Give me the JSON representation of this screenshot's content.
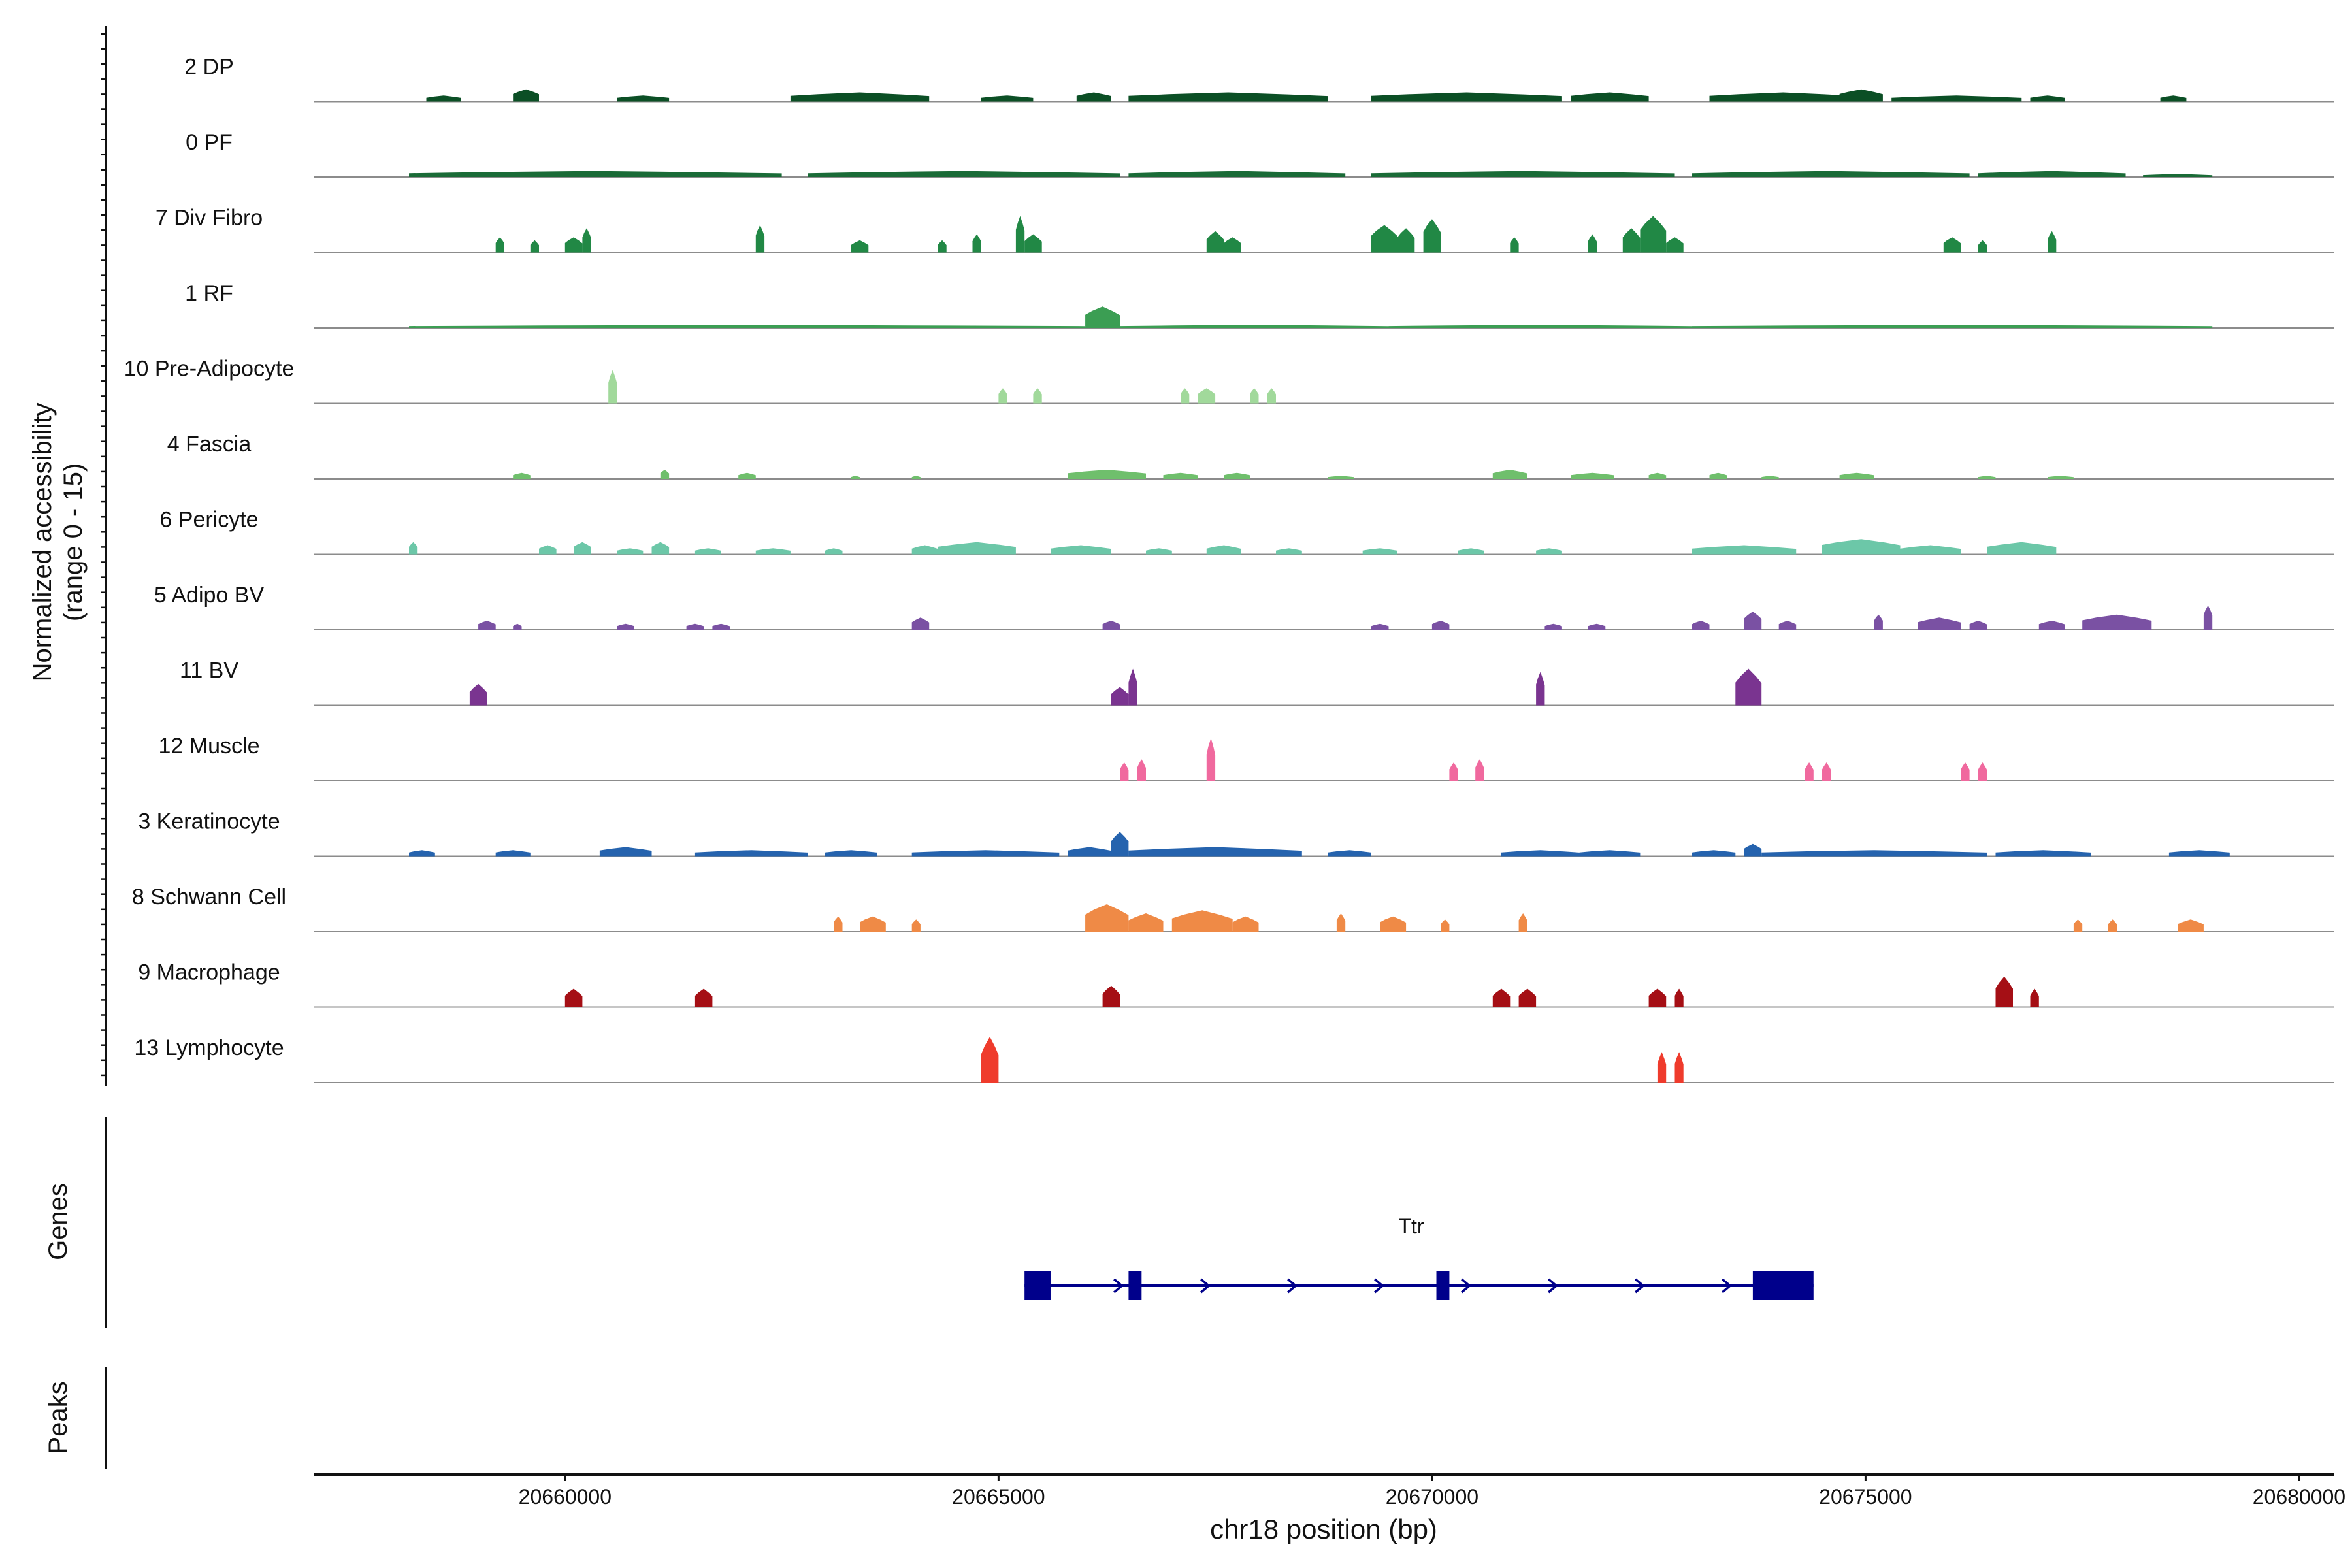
{
  "chart_data": {
    "type": "area",
    "ylabel": [
      "Normalized accessibility",
      "(range 0 - 15)"
    ],
    "ylim": [
      0,
      15
    ],
    "xlabel": "chr18 position (bp)",
    "xlim": [
      20657100,
      20680400
    ],
    "x_ticks": [
      20660000,
      20665000,
      20670000,
      20675000,
      20680000
    ],
    "x_tick_labels": [
      "20660000",
      "20665000",
      "20670000",
      "20675000",
      "20680000"
    ],
    "panels": {
      "genes": "Genes",
      "peaks": "Peaks"
    },
    "tracks": [
      {
        "name": "2 DP",
        "color": "#0b4f25",
        "peaks": [
          [
            20658400,
            20658800,
            2
          ],
          [
            20659400,
            20659700,
            4
          ],
          [
            20660600,
            20661200,
            2
          ],
          [
            20662600,
            20664200,
            3
          ],
          [
            20664800,
            20665400,
            2
          ],
          [
            20665900,
            20666300,
            3
          ],
          [
            20666500,
            20668800,
            3
          ],
          [
            20669300,
            20671500,
            3
          ],
          [
            20671600,
            20672500,
            3
          ],
          [
            20673200,
            20674900,
            3
          ],
          [
            20674700,
            20675200,
            4
          ],
          [
            20675300,
            20676800,
            2
          ],
          [
            20676900,
            20677300,
            2
          ],
          [
            20678400,
            20678700,
            2
          ]
        ]
      },
      {
        "name": "0 PF",
        "color": "#1a6b37",
        "peaks": [
          [
            20658200,
            20662500,
            2
          ],
          [
            20662800,
            20666400,
            2
          ],
          [
            20666500,
            20669000,
            2
          ],
          [
            20669300,
            20672800,
            2
          ],
          [
            20673000,
            20676200,
            2
          ],
          [
            20676300,
            20678000,
            2
          ],
          [
            20678200,
            20679000,
            1
          ]
        ]
      },
      {
        "name": "7 Div Fibro",
        "color": "#218845",
        "peaks": [
          [
            20659200,
            20659300,
            5
          ],
          [
            20659600,
            20659700,
            4
          ],
          [
            20660000,
            20660200,
            5
          ],
          [
            20660200,
            20660300,
            8
          ],
          [
            20662200,
            20662300,
            9
          ],
          [
            20663300,
            20663500,
            4
          ],
          [
            20664300,
            20664400,
            4
          ],
          [
            20664700,
            20664800,
            6
          ],
          [
            20665200,
            20665300,
            12
          ],
          [
            20665300,
            20665500,
            6
          ],
          [
            20667400,
            20667600,
            7
          ],
          [
            20667600,
            20667800,
            5
          ],
          [
            20669300,
            20669600,
            9
          ],
          [
            20669600,
            20669800,
            8
          ],
          [
            20669900,
            20670100,
            11
          ],
          [
            20670900,
            20671000,
            5
          ],
          [
            20671800,
            20671900,
            6
          ],
          [
            20672200,
            20672400,
            8
          ],
          [
            20672400,
            20672700,
            12
          ],
          [
            20672700,
            20672900,
            5
          ],
          [
            20675900,
            20676100,
            5
          ],
          [
            20676300,
            20676400,
            4
          ],
          [
            20677100,
            20677200,
            7
          ]
        ]
      },
      {
        "name": "1 RF",
        "color": "#3b9e53",
        "peaks": [
          [
            20658200,
            20666000,
            1
          ],
          [
            20666000,
            20666400,
            7
          ],
          [
            20666400,
            20669500,
            1
          ],
          [
            20669500,
            20673000,
            1
          ],
          [
            20673000,
            20679000,
            1
          ]
        ]
      },
      {
        "name": "10 Pre-Adipocyte",
        "color": "#a1d99b",
        "peaks": [
          [
            20660500,
            20660600,
            11
          ],
          [
            20665000,
            20665100,
            5
          ],
          [
            20665400,
            20665500,
            5
          ],
          [
            20667100,
            20667200,
            5
          ],
          [
            20667300,
            20667500,
            5
          ],
          [
            20667900,
            20668000,
            5
          ],
          [
            20668100,
            20668200,
            5
          ]
        ]
      },
      {
        "name": "4 Fascia",
        "color": "#6fbf6c",
        "peaks": [
          [
            20659400,
            20659600,
            2
          ],
          [
            20661100,
            20661200,
            3
          ],
          [
            20662000,
            20662200,
            2
          ],
          [
            20663300,
            20663400,
            1
          ],
          [
            20664000,
            20664100,
            1
          ],
          [
            20665800,
            20666700,
            3
          ],
          [
            20666900,
            20667300,
            2
          ],
          [
            20667600,
            20667900,
            2
          ],
          [
            20668800,
            20669100,
            1
          ],
          [
            20670700,
            20671100,
            3
          ],
          [
            20671600,
            20672100,
            2
          ],
          [
            20672500,
            20672700,
            2
          ],
          [
            20673200,
            20673400,
            2
          ],
          [
            20673800,
            20674000,
            1
          ],
          [
            20674700,
            20675100,
            2
          ],
          [
            20676300,
            20676500,
            1
          ],
          [
            20677100,
            20677400,
            1
          ]
        ]
      },
      {
        "name": "6 Pericyte",
        "color": "#6cc7a8",
        "peaks": [
          [
            20658200,
            20658300,
            4
          ],
          [
            20659700,
            20659900,
            3
          ],
          [
            20660100,
            20660300,
            4
          ],
          [
            20660600,
            20660900,
            2
          ],
          [
            20661000,
            20661200,
            4
          ],
          [
            20661500,
            20661800,
            2
          ],
          [
            20662200,
            20662600,
            2
          ],
          [
            20663000,
            20663200,
            2
          ],
          [
            20664000,
            20664300,
            3
          ],
          [
            20664300,
            20665200,
            4
          ],
          [
            20665600,
            20666300,
            3
          ],
          [
            20666700,
            20667000,
            2
          ],
          [
            20667400,
            20667800,
            3
          ],
          [
            20668200,
            20668500,
            2
          ],
          [
            20669200,
            20669600,
            2
          ],
          [
            20670300,
            20670600,
            2
          ],
          [
            20671200,
            20671500,
            2
          ],
          [
            20673000,
            20674200,
            3
          ],
          [
            20674500,
            20675400,
            5
          ],
          [
            20675400,
            20676100,
            3
          ],
          [
            20676400,
            20677200,
            4
          ]
        ]
      },
      {
        "name": "5 Adipo BV",
        "color": "#7a51a3",
        "peaks": [
          [
            20659000,
            20659200,
            3
          ],
          [
            20659400,
            20659500,
            2
          ],
          [
            20660600,
            20660800,
            2
          ],
          [
            20661400,
            20661600,
            2
          ],
          [
            20661700,
            20661900,
            2
          ],
          [
            20664000,
            20664200,
            4
          ],
          [
            20666200,
            20666400,
            3
          ],
          [
            20669300,
            20669500,
            2
          ],
          [
            20670000,
            20670200,
            3
          ],
          [
            20671300,
            20671500,
            2
          ],
          [
            20671800,
            20672000,
            2
          ],
          [
            20673000,
            20673200,
            3
          ],
          [
            20673600,
            20673800,
            6
          ],
          [
            20674000,
            20674200,
            3
          ],
          [
            20675100,
            20675200,
            5
          ],
          [
            20675600,
            20676100,
            4
          ],
          [
            20676200,
            20676400,
            3
          ],
          [
            20677000,
            20677300,
            3
          ],
          [
            20677500,
            20678300,
            5
          ],
          [
            20678900,
            20679000,
            8
          ]
        ]
      },
      {
        "name": "11 BV",
        "color": "#7a3490",
        "peaks": [
          [
            20658900,
            20659100,
            7
          ],
          [
            20666300,
            20666500,
            6
          ],
          [
            20666500,
            20666600,
            12
          ],
          [
            20671200,
            20671300,
            11
          ],
          [
            20673500,
            20673800,
            12
          ]
        ]
      },
      {
        "name": "12 Muscle",
        "color": "#f0699e",
        "peaks": [
          [
            20666400,
            20666500,
            6
          ],
          [
            20666600,
            20666700,
            7
          ],
          [
            20667400,
            20667500,
            14
          ],
          [
            20670200,
            20670300,
            6
          ],
          [
            20670500,
            20670600,
            7
          ],
          [
            20674300,
            20674400,
            6
          ],
          [
            20674500,
            20674600,
            6
          ],
          [
            20676100,
            20676200,
            6
          ],
          [
            20676300,
            20676400,
            6
          ]
        ]
      },
      {
        "name": "3 Keratinocyte",
        "color": "#2563ae",
        "peaks": [
          [
            20658200,
            20658500,
            2
          ],
          [
            20659200,
            20659600,
            2
          ],
          [
            20660400,
            20661000,
            3
          ],
          [
            20661500,
            20662800,
            2
          ],
          [
            20663000,
            20663600,
            2
          ],
          [
            20664000,
            20665700,
            2
          ],
          [
            20665800,
            20666300,
            3
          ],
          [
            20666300,
            20666500,
            8
          ],
          [
            20666500,
            20668500,
            3
          ],
          [
            20668800,
            20669300,
            2
          ],
          [
            20670800,
            20671700,
            2
          ],
          [
            20671700,
            20672400,
            2
          ],
          [
            20673000,
            20673500,
            2
          ],
          [
            20673600,
            20673800,
            4
          ],
          [
            20673800,
            20676400,
            2
          ],
          [
            20676500,
            20677600,
            2
          ],
          [
            20678500,
            20679200,
            2
          ]
        ]
      },
      {
        "name": "8 Schwann Cell",
        "color": "#ef8a46",
        "peaks": [
          [
            20663100,
            20663200,
            5
          ],
          [
            20663400,
            20663700,
            5
          ],
          [
            20664000,
            20664100,
            4
          ],
          [
            20666000,
            20666500,
            9
          ],
          [
            20666500,
            20666900,
            6
          ],
          [
            20667000,
            20667700,
            7
          ],
          [
            20667700,
            20668000,
            5
          ],
          [
            20668900,
            20669000,
            6
          ],
          [
            20669400,
            20669700,
            5
          ],
          [
            20670100,
            20670200,
            4
          ],
          [
            20671000,
            20671100,
            6
          ],
          [
            20677400,
            20677500,
            4
          ],
          [
            20677800,
            20677900,
            4
          ],
          [
            20678600,
            20678900,
            4
          ]
        ]
      },
      {
        "name": "9 Macrophage",
        "color": "#a50f15",
        "peaks": [
          [
            20660000,
            20660200,
            6
          ],
          [
            20661500,
            20661700,
            6
          ],
          [
            20666200,
            20666400,
            7
          ],
          [
            20670700,
            20670900,
            6
          ],
          [
            20671000,
            20671200,
            6
          ],
          [
            20672500,
            20672700,
            6
          ],
          [
            20672800,
            20672900,
            6
          ],
          [
            20676500,
            20676700,
            10
          ],
          [
            20676900,
            20677000,
            6
          ]
        ]
      },
      {
        "name": "13 Lymphocyte",
        "color": "#ef3b2c",
        "peaks": [
          [
            20664800,
            20665000,
            15
          ],
          [
            20672600,
            20672700,
            10
          ],
          [
            20672800,
            20672900,
            10
          ]
        ]
      }
    ],
    "gene": {
      "name": "Ttr",
      "color": "#00008b",
      "start": 20665300,
      "end": 20674400,
      "strand": "+",
      "exons": [
        [
          20665300,
          20665600
        ],
        [
          20666500,
          20666650
        ],
        [
          20670050,
          20670200
        ],
        [
          20673700,
          20674400
        ]
      ]
    }
  }
}
